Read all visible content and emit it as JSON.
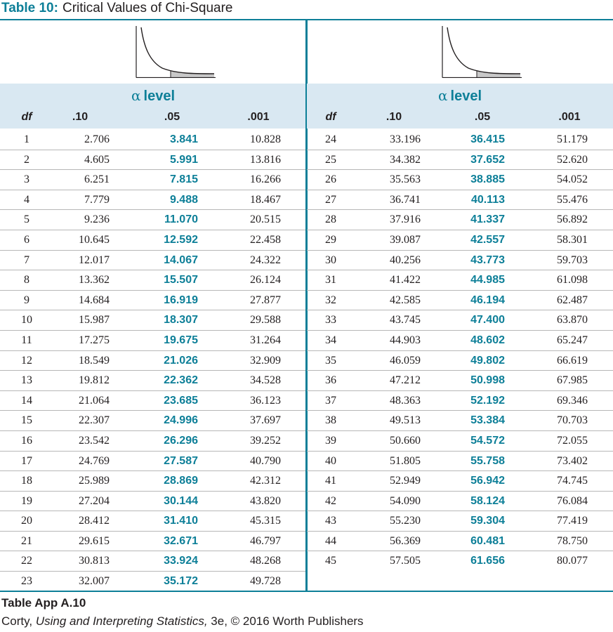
{
  "title": {
    "number": "Table 10:",
    "text": "Critical Values of Chi-Square"
  },
  "alpha_symbol": "α",
  "alpha_label": "level",
  "columns": {
    "df": "df",
    "c10": ".10",
    "c05": ".05",
    "c001": ".001"
  },
  "left_rows": [
    [
      "1",
      "2.706",
      "3.841",
      "10.828"
    ],
    [
      "2",
      "4.605",
      "5.991",
      "13.816"
    ],
    [
      "3",
      "6.251",
      "7.815",
      "16.266"
    ],
    [
      "4",
      "7.779",
      "9.488",
      "18.467"
    ],
    [
      "5",
      "9.236",
      "11.070",
      "20.515"
    ],
    [
      "6",
      "10.645",
      "12.592",
      "22.458"
    ],
    [
      "7",
      "12.017",
      "14.067",
      "24.322"
    ],
    [
      "8",
      "13.362",
      "15.507",
      "26.124"
    ],
    [
      "9",
      "14.684",
      "16.919",
      "27.877"
    ],
    [
      "10",
      "15.987",
      "18.307",
      "29.588"
    ],
    [
      "11",
      "17.275",
      "19.675",
      "31.264"
    ],
    [
      "12",
      "18.549",
      "21.026",
      "32.909"
    ],
    [
      "13",
      "19.812",
      "22.362",
      "34.528"
    ],
    [
      "14",
      "21.064",
      "23.685",
      "36.123"
    ],
    [
      "15",
      "22.307",
      "24.996",
      "37.697"
    ],
    [
      "16",
      "23.542",
      "26.296",
      "39.252"
    ],
    [
      "17",
      "24.769",
      "27.587",
      "40.790"
    ],
    [
      "18",
      "25.989",
      "28.869",
      "42.312"
    ],
    [
      "19",
      "27.204",
      "30.144",
      "43.820"
    ],
    [
      "20",
      "28.412",
      "31.410",
      "45.315"
    ],
    [
      "21",
      "29.615",
      "32.671",
      "46.797"
    ],
    [
      "22",
      "30.813",
      "33.924",
      "48.268"
    ],
    [
      "23",
      "32.007",
      "35.172",
      "49.728"
    ]
  ],
  "right_rows": [
    [
      "24",
      "33.196",
      "36.415",
      "51.179"
    ],
    [
      "25",
      "34.382",
      "37.652",
      "52.620"
    ],
    [
      "26",
      "35.563",
      "38.885",
      "54.052"
    ],
    [
      "27",
      "36.741",
      "40.113",
      "55.476"
    ],
    [
      "28",
      "37.916",
      "41.337",
      "56.892"
    ],
    [
      "29",
      "39.087",
      "42.557",
      "58.301"
    ],
    [
      "30",
      "40.256",
      "43.773",
      "59.703"
    ],
    [
      "31",
      "41.422",
      "44.985",
      "61.098"
    ],
    [
      "32",
      "42.585",
      "46.194",
      "62.487"
    ],
    [
      "33",
      "43.745",
      "47.400",
      "63.870"
    ],
    [
      "34",
      "44.903",
      "48.602",
      "65.247"
    ],
    [
      "35",
      "46.059",
      "49.802",
      "66.619"
    ],
    [
      "36",
      "47.212",
      "50.998",
      "67.985"
    ],
    [
      "37",
      "48.363",
      "52.192",
      "69.346"
    ],
    [
      "38",
      "49.513",
      "53.384",
      "70.703"
    ],
    [
      "39",
      "50.660",
      "54.572",
      "72.055"
    ],
    [
      "40",
      "51.805",
      "55.758",
      "73.402"
    ],
    [
      "41",
      "52.949",
      "56.942",
      "74.745"
    ],
    [
      "42",
      "54.090",
      "58.124",
      "76.084"
    ],
    [
      "43",
      "55.230",
      "59.304",
      "77.419"
    ],
    [
      "44",
      "56.369",
      "60.481",
      "78.750"
    ],
    [
      "45",
      "57.505",
      "61.656",
      "80.077"
    ]
  ],
  "caption": "Table App A.10",
  "credit": {
    "author": "Corty,",
    "book": "Using and Interpreting Statistics,",
    "rest": "3e, © 2016 Worth Publishers"
  },
  "colors": {
    "accent": "#0d7f98",
    "header_bg": "#d9e8f2",
    "shaded_tail": "#c8c8c8"
  }
}
